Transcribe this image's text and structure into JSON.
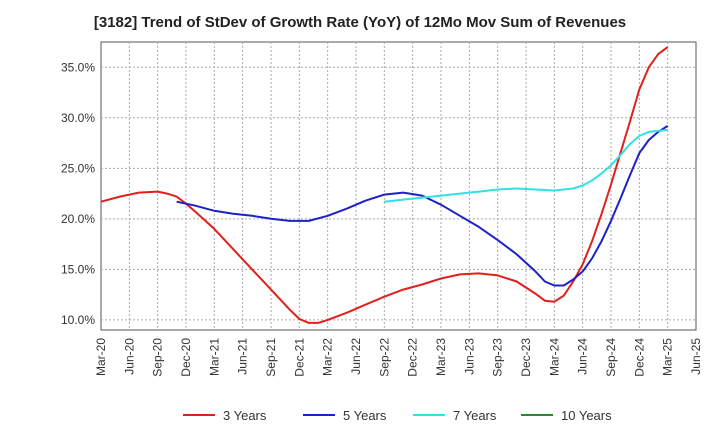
{
  "chart_data": {
    "type": "line",
    "title": "[3182]  Trend of StDev of Growth Rate (YoY) of 12Mo Mov Sum of Revenues",
    "xlabel": "",
    "ylabel": "",
    "ylim": [
      9.0,
      37.5
    ],
    "y_ticks": [
      10.0,
      15.0,
      20.0,
      25.0,
      30.0,
      35.0
    ],
    "y_tick_labels": [
      "10.0%",
      "15.0%",
      "20.0%",
      "25.0%",
      "30.0%",
      "35.0%"
    ],
    "x_tick_labels": [
      "Mar-20",
      "Jun-20",
      "Sep-20",
      "Dec-20",
      "Mar-21",
      "Jun-21",
      "Sep-21",
      "Dec-21",
      "Mar-22",
      "Jun-22",
      "Sep-22",
      "Dec-22",
      "Mar-23",
      "Jun-23",
      "Sep-23",
      "Dec-23",
      "Mar-24",
      "Jun-24",
      "Sep-24",
      "Dec-24",
      "Mar-25",
      "Jun-25"
    ],
    "grid": true,
    "legend_position": "bottom",
    "series": [
      {
        "name": "3 Years",
        "color": "#e0201b",
        "points": [
          [
            0,
            21.7
          ],
          [
            1,
            22.2
          ],
          [
            2,
            22.6
          ],
          [
            3,
            22.7
          ],
          [
            3.5,
            22.5
          ],
          [
            4,
            22.2
          ],
          [
            4.5,
            21.5
          ],
          [
            5,
            20.7
          ],
          [
            6,
            19.0
          ],
          [
            7,
            17.0
          ],
          [
            8,
            15.0
          ],
          [
            9,
            13.0
          ],
          [
            10,
            11.0
          ],
          [
            10.5,
            10.1
          ],
          [
            11,
            9.7
          ],
          [
            11.5,
            9.7
          ],
          [
            12,
            10.0
          ],
          [
            13,
            10.7
          ],
          [
            14,
            11.5
          ],
          [
            15,
            12.3
          ],
          [
            16,
            13.0
          ],
          [
            17,
            13.5
          ],
          [
            18,
            14.1
          ],
          [
            19,
            14.5
          ],
          [
            20,
            14.6
          ],
          [
            21,
            14.4
          ],
          [
            22,
            13.8
          ],
          [
            23,
            12.6
          ],
          [
            23.5,
            11.9
          ],
          [
            24,
            11.8
          ],
          [
            24.5,
            12.4
          ],
          [
            25,
            13.8
          ],
          [
            25.5,
            15.5
          ],
          [
            26,
            17.8
          ],
          [
            26.5,
            20.5
          ],
          [
            27,
            23.4
          ],
          [
            27.5,
            26.5
          ],
          [
            28,
            29.6
          ],
          [
            28.5,
            32.8
          ],
          [
            29,
            35.0
          ],
          [
            29.5,
            36.3
          ],
          [
            30,
            37.0
          ]
        ]
      },
      {
        "name": "5 Years",
        "color": "#1c22c8",
        "points": [
          [
            4,
            21.7
          ],
          [
            5,
            21.3
          ],
          [
            6,
            20.8
          ],
          [
            7,
            20.5
          ],
          [
            8,
            20.3
          ],
          [
            9,
            20.0
          ],
          [
            10,
            19.8
          ],
          [
            11,
            19.8
          ],
          [
            12,
            20.3
          ],
          [
            13,
            21.0
          ],
          [
            14,
            21.8
          ],
          [
            15,
            22.4
          ],
          [
            16,
            22.6
          ],
          [
            17,
            22.3
          ],
          [
            18,
            21.4
          ],
          [
            19,
            20.3
          ],
          [
            20,
            19.2
          ],
          [
            21,
            17.9
          ],
          [
            22,
            16.5
          ],
          [
            23,
            14.8
          ],
          [
            23.5,
            13.8
          ],
          [
            24,
            13.4
          ],
          [
            24.5,
            13.4
          ],
          [
            25,
            14.0
          ],
          [
            25.5,
            14.8
          ],
          [
            26,
            16.1
          ],
          [
            26.5,
            17.8
          ],
          [
            27,
            19.8
          ],
          [
            27.5,
            22.0
          ],
          [
            28,
            24.3
          ],
          [
            28.5,
            26.5
          ],
          [
            29,
            27.8
          ],
          [
            29.5,
            28.6
          ],
          [
            30,
            29.2
          ]
        ]
      },
      {
        "name": "7 Years",
        "color": "#33e0e5",
        "points": [
          [
            15,
            21.7
          ],
          [
            16,
            21.9
          ],
          [
            17,
            22.1
          ],
          [
            18,
            22.3
          ],
          [
            19,
            22.5
          ],
          [
            20,
            22.7
          ],
          [
            21,
            22.9
          ],
          [
            22,
            23.0
          ],
          [
            23,
            22.9
          ],
          [
            24,
            22.8
          ],
          [
            25,
            23.0
          ],
          [
            25.5,
            23.3
          ],
          [
            26,
            23.8
          ],
          [
            26.5,
            24.5
          ],
          [
            27,
            25.3
          ],
          [
            27.5,
            26.3
          ],
          [
            28,
            27.4
          ],
          [
            28.5,
            28.2
          ],
          [
            29,
            28.6
          ],
          [
            30,
            28.8
          ]
        ]
      },
      {
        "name": "10 Years",
        "color": "#2a8a2a",
        "points": []
      }
    ]
  }
}
